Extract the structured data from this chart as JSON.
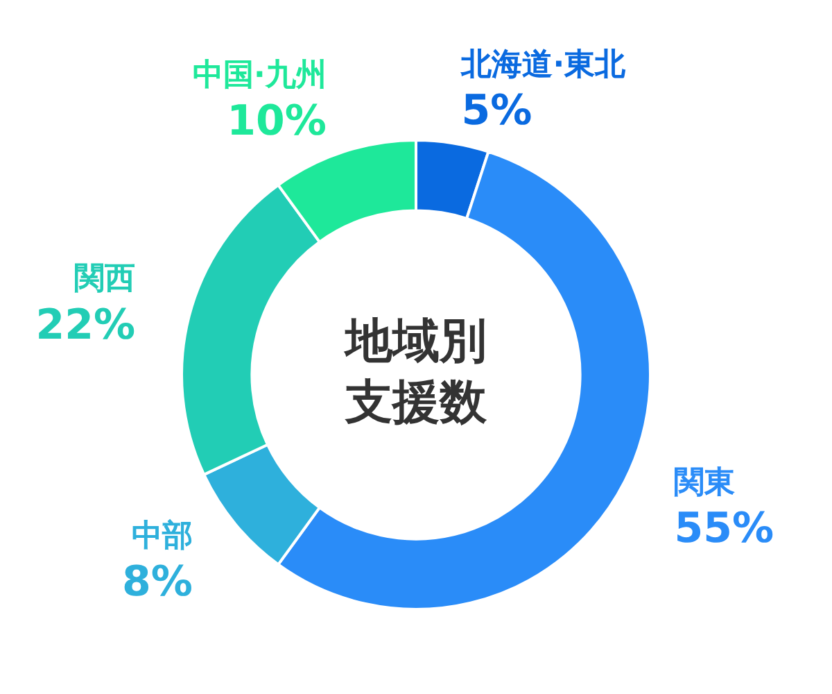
{
  "chart_data": {
    "type": "donut",
    "title": "地域別支援数",
    "categories": [
      "北海道·東北",
      "関東",
      "中部",
      "関西",
      "中国·九州"
    ],
    "values": [
      5,
      55,
      8,
      22,
      10
    ],
    "value_labels": [
      "5%",
      "55%",
      "8%",
      "22%",
      "10%"
    ],
    "colors": [
      "#0a6ae0",
      "#2a8cf8",
      "#2eb0dc",
      "#22cdb5",
      "#1ee89a"
    ],
    "legend": false
  }
}
